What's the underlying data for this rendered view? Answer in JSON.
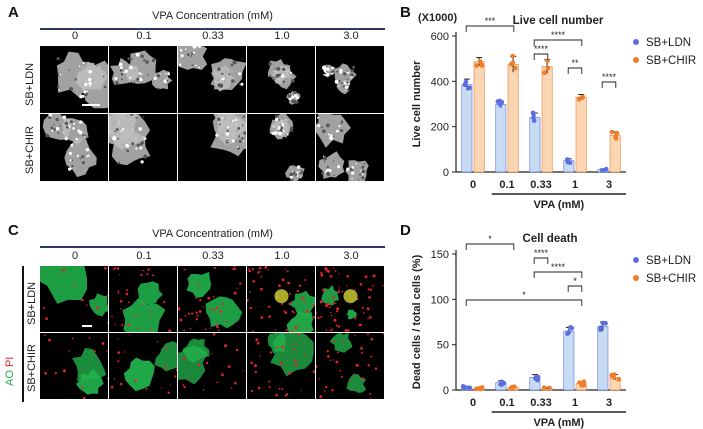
{
  "figure": {
    "panels": {
      "A": {
        "letter": "A",
        "header": "VPA Concentration (mM)",
        "columns": [
          "0",
          "0.1",
          "0.33",
          "1.0",
          "3.0"
        ],
        "rows": [
          "SB+LDN",
          "SB+CHIR"
        ],
        "accent_color": "#2b3a5c"
      },
      "C": {
        "letter": "C",
        "header": "VPA Concentration (mM)",
        "columns": [
          "0",
          "0.1",
          "0.33",
          "1.0",
          "3.0"
        ],
        "rows": [
          "SB+LDN",
          "SB+CHIR"
        ],
        "stain_ao": "AO",
        "stain_pi": "PI",
        "ao_color": "#22b14c",
        "pi_color": "#e3242b",
        "accent_color": "#2b3a5c"
      },
      "B": {
        "letter": "B",
        "multiplier": "(X1000)"
      },
      "D": {
        "letter": "D"
      }
    }
  },
  "chart_data": [
    {
      "id": "B",
      "type": "bar",
      "title": "Live cell number",
      "xlabel": "VPA (mM)",
      "ylabel": "Live cell number",
      "categories": [
        "0",
        "0.1",
        "0.33",
        "1",
        "3"
      ],
      "ylim": [
        0,
        600
      ],
      "yticks": [
        "0",
        "200",
        "400",
        "600"
      ],
      "series": [
        {
          "name": "SB+LDN",
          "color": "#5b6ee1",
          "fill": "#c7dcf2",
          "values": [
            385,
            298,
            240,
            50,
            10
          ],
          "errors": [
            25,
            15,
            20,
            8,
            3
          ]
        },
        {
          "name": "SB+CHIR",
          "color": "#f07d2c",
          "fill": "#fbd6b5",
          "values": [
            487,
            475,
            465,
            330,
            162
          ],
          "errors": [
            18,
            35,
            30,
            12,
            15
          ]
        }
      ],
      "significance": [
        {
          "label": "***",
          "from": 0,
          "to": 2,
          "level": 1
        },
        {
          "label": "****",
          "from": 2,
          "to": 4,
          "level": 2
        },
        {
          "label": "****",
          "from": 2,
          "to": 3,
          "level": 3
        },
        {
          "label": "**",
          "from": 3,
          "to": 4,
          "level": 4
        },
        {
          "label": "****",
          "from": 4,
          "to": 5,
          "level": 5
        }
      ],
      "legend": "top-right"
    },
    {
      "id": "D",
      "type": "bar",
      "title": "Cell death",
      "xlabel": "VPA (mM)",
      "ylabel": "Dead cells / total cells (%)",
      "categories": [
        "0",
        "0.1",
        "0.33",
        "1",
        "3"
      ],
      "ylim": [
        0,
        150
      ],
      "yticks": [
        "0",
        "50",
        "100",
        "150"
      ],
      "series": [
        {
          "name": "SB+LDN",
          "color": "#5b6ee1",
          "fill": "#c7dcf2",
          "values": [
            3,
            8,
            14,
            65,
            70
          ],
          "errors": [
            1,
            2,
            3,
            4,
            5
          ]
        },
        {
          "name": "SB+CHIR",
          "color": "#f07d2c",
          "fill": "#fbd6b5",
          "values": [
            2,
            3,
            2,
            7,
            14
          ],
          "errors": [
            1,
            1,
            1,
            2,
            3
          ]
        }
      ],
      "significance": [
        {
          "label": "*",
          "from": 0,
          "to": 2,
          "level": 1
        },
        {
          "label": "****",
          "from": 2,
          "to": 3,
          "level": 2
        },
        {
          "label": "****",
          "from": 2,
          "to": 4,
          "level": 3
        },
        {
          "label": "*",
          "from": 3,
          "to": 4,
          "level": 4
        },
        {
          "label": "*",
          "from": 0,
          "to": 4,
          "level": 5
        }
      ],
      "legend": "top-right"
    }
  ]
}
